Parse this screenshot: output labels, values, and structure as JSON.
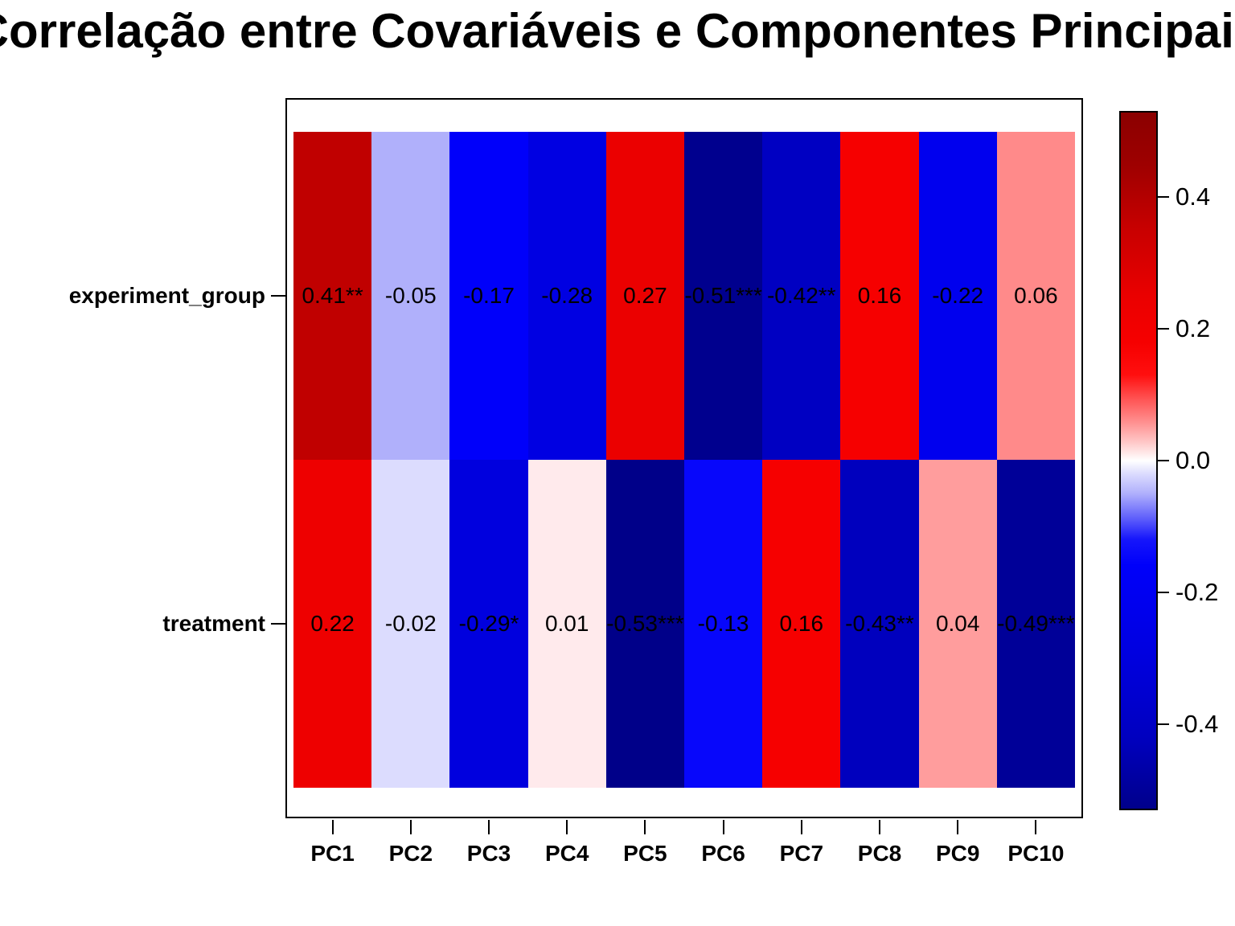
{
  "chart_data": {
    "type": "heatmap",
    "title": "Correlação entre Covariáveis e Componentes Principais",
    "columns": [
      "PC1",
      "PC2",
      "PC3",
      "PC4",
      "PC5",
      "PC6",
      "PC7",
      "PC8",
      "PC9",
      "PC10"
    ],
    "rows": [
      {
        "name": "experiment_group",
        "cells": [
          {
            "label": "0.41**",
            "value": 0.41,
            "color": "#C00000"
          },
          {
            "label": "-0.05",
            "value": -0.05,
            "color": "#B0B0FB"
          },
          {
            "label": "-0.17",
            "value": -0.17,
            "color": "#0000FA"
          },
          {
            "label": "-0.28",
            "value": -0.28,
            "color": "#0000E2"
          },
          {
            "label": "0.27",
            "value": 0.27,
            "color": "#EB0000"
          },
          {
            "label": "-0.51***",
            "value": -0.51,
            "color": "#00008E"
          },
          {
            "label": "-0.42**",
            "value": -0.42,
            "color": "#0000C2"
          },
          {
            "label": "0.16",
            "value": 0.16,
            "color": "#F60000"
          },
          {
            "label": "-0.22",
            "value": -0.22,
            "color": "#0000EE"
          },
          {
            "label": "0.06",
            "value": 0.06,
            "color": "#FF8A8A"
          }
        ]
      },
      {
        "name": "treatment",
        "cells": [
          {
            "label": "0.22",
            "value": 0.22,
            "color": "#EE0000"
          },
          {
            "label": "-0.02",
            "value": -0.02,
            "color": "#DCDCFE"
          },
          {
            "label": "-0.29*",
            "value": -0.29,
            "color": "#0000DE"
          },
          {
            "label": "0.01",
            "value": 0.01,
            "color": "#FFEAEC"
          },
          {
            "label": "-0.53***",
            "value": -0.53,
            "color": "#000089"
          },
          {
            "label": "-0.13",
            "value": -0.13,
            "color": "#0707FB"
          },
          {
            "label": "0.16",
            "value": 0.16,
            "color": "#F60000"
          },
          {
            "label": "-0.43**",
            "value": -0.43,
            "color": "#0000BE"
          },
          {
            "label": "0.04",
            "value": 0.04,
            "color": "#FF9D9D"
          },
          {
            "label": "-0.49***",
            "value": -0.49,
            "color": "#000098"
          }
        ]
      }
    ],
    "colorbar": {
      "vmin": -0.53,
      "vmax": 0.53,
      "ticks": [
        {
          "label": "0.4",
          "value": 0.4
        },
        {
          "label": "0.2",
          "value": 0.2
        },
        {
          "label": "0.0",
          "value": 0.0
        },
        {
          "label": "-0.2",
          "value": -0.2
        },
        {
          "label": "-0.4",
          "value": -0.4
        }
      ],
      "gradient": [
        {
          "pos": 0,
          "color": "#8B0000"
        },
        {
          "pos": 7.5,
          "color": "#9E0000"
        },
        {
          "pos": 17,
          "color": "#C90000"
        },
        {
          "pos": 26.4,
          "color": "#EA0000"
        },
        {
          "pos": 33,
          "color": "#F60000"
        },
        {
          "pos": 37.7,
          "color": "#FF0F0F"
        },
        {
          "pos": 41.5,
          "color": "#FF5A5A"
        },
        {
          "pos": 44.3,
          "color": "#FF8C8C"
        },
        {
          "pos": 47.2,
          "color": "#FFC4C4"
        },
        {
          "pos": 49.5,
          "color": "#FFF5F5"
        },
        {
          "pos": 50,
          "color": "#FFFFFF"
        },
        {
          "pos": 51.9,
          "color": "#DCDCFE"
        },
        {
          "pos": 54.7,
          "color": "#B0B0FC"
        },
        {
          "pos": 58.5,
          "color": "#5A5AFB"
        },
        {
          "pos": 61.3,
          "color": "#1616FB"
        },
        {
          "pos": 65,
          "color": "#0000FA"
        },
        {
          "pos": 70.8,
          "color": "#0000EE"
        },
        {
          "pos": 78.3,
          "color": "#0000DE"
        },
        {
          "pos": 89.6,
          "color": "#0000C0"
        },
        {
          "pos": 100,
          "color": "#00008B"
        }
      ]
    },
    "layout": {
      "grid": false,
      "legend_position": "right-colorbar"
    }
  }
}
